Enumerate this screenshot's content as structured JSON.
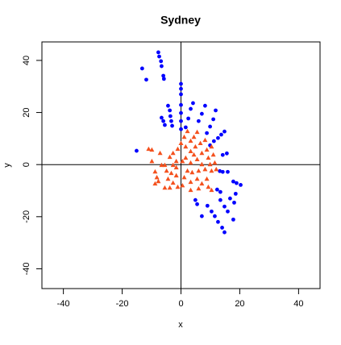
{
  "chart_data": {
    "type": "scatter",
    "title": "Sydney",
    "x_label": "x",
    "y_label": "y",
    "xlim": [
      -47.3,
      47.3
    ],
    "ylim": [
      -47.6,
      47.1
    ],
    "xticks": [
      -40,
      -20,
      0,
      20,
      40
    ],
    "yticks": [
      -40,
      -20,
      0,
      20,
      40
    ],
    "hlines": [
      0
    ],
    "vlines": [
      0
    ],
    "series": [
      {
        "color": "#0000ff",
        "marker": "circle",
        "x": [
          -7.7,
          -7.4,
          -6.8,
          -6.6,
          -13.2,
          -11.8,
          -6.0,
          -5.8,
          0,
          0,
          0,
          -4.4,
          -3.8,
          -3.6,
          -3.3,
          -3.0,
          -6.6,
          -6.0,
          -5.5,
          0,
          0,
          0,
          0,
          4.1,
          3.3,
          2.5,
          1.6,
          8.2,
          7.1,
          6.0,
          11.8,
          11.0,
          9.9,
          8.8,
          14.8,
          13.7,
          12.6,
          11.2,
          9.9,
          15.6,
          14.2,
          -15.1,
          13.2,
          14.2,
          15.9,
          17.8,
          18.9,
          20.3,
          12.3,
          13.4,
          16.7,
          18.1,
          18.6,
          4.9,
          5.5,
          7.1,
          9.0,
          10.4,
          11.5,
          12.6,
          14.0,
          14.8,
          13.4,
          14.8,
          15.9,
          17.8
        ],
        "values": [
          43.1,
          41.5,
          39.7,
          37.8,
          36.9,
          32.6,
          34.1,
          32.9,
          31.0,
          29.1,
          27.0,
          22.6,
          20.8,
          18.6,
          16.7,
          14.9,
          18.0,
          16.7,
          15.2,
          22.9,
          19.8,
          16.7,
          13.6,
          23.6,
          21.4,
          17.7,
          14.3,
          22.6,
          19.5,
          16.7,
          20.8,
          17.4,
          14.6,
          12.1,
          12.7,
          11.5,
          10.2,
          9.0,
          7.4,
          4.3,
          3.7,
          5.3,
          -2.5,
          -2.8,
          -2.8,
          -6.5,
          -7.1,
          -7.8,
          -9.6,
          -10.5,
          -13.0,
          -14.6,
          -11.2,
          -13.6,
          -15.2,
          -19.8,
          -15.8,
          -18.0,
          -19.8,
          -22.0,
          -24.2,
          -26.0,
          -13.6,
          -16.1,
          -18.0,
          -21.1
        ]
      },
      {
        "color": "#f4511e",
        "marker": "triangle",
        "x": [
          -11,
          -9.9,
          -7.1,
          -8.8,
          -8.2,
          -8.8,
          -7.7,
          -4.9,
          -5.5,
          -3.8,
          -2.7,
          -4.4,
          -3.8,
          -2.7,
          -1.6,
          -1.6,
          -1.1,
          0,
          1.1,
          2.2,
          1.6,
          3.3,
          4.4,
          5.5,
          3.3,
          4.9,
          6.6,
          8.2,
          7.1,
          8.8,
          10.4,
          9.3,
          11.0,
          9.9,
          11.5,
          10.4,
          12.0,
          0.5,
          1.6,
          3.3,
          5.5,
          7.1,
          6.0,
          3.8,
          2.2,
          1.1,
          0.5,
          3.3,
          5.5,
          7.1,
          8.8,
          9.3,
          10.4,
          6.0,
          3.3,
          -2.7,
          -6.6,
          -9.9,
          -5.5,
          -1.1,
          4.4,
          8.2,
          -1.6,
          -3.3
        ],
        "values": [
          5.9,
          5.6,
          4.3,
          -2.8,
          -5.0,
          -7.4,
          -6.5,
          -2.5,
          -0.3,
          2.8,
          4.3,
          -5.6,
          -9.0,
          -7.1,
          -4.3,
          1.2,
          5.9,
          8.1,
          10.5,
          12.7,
          6.8,
          9.0,
          10.5,
          12.4,
          5.0,
          6.8,
          8.1,
          9.3,
          4.3,
          5.6,
          6.8,
          2.5,
          3.7,
          0,
          0.6,
          -2.5,
          -1.9,
          1.2,
          2.5,
          0.6,
          1.9,
          0,
          -2.5,
          -3.1,
          -2.5,
          -5.0,
          -8.1,
          -6.8,
          -5.6,
          -7.4,
          -5.6,
          -8.7,
          -9.9,
          -9.3,
          -9.9,
          -0.3,
          -0.3,
          1.2,
          -9.0,
          -8.7,
          3.7,
          -1.9,
          -1.2,
          -3.4
        ]
      }
    ]
  }
}
